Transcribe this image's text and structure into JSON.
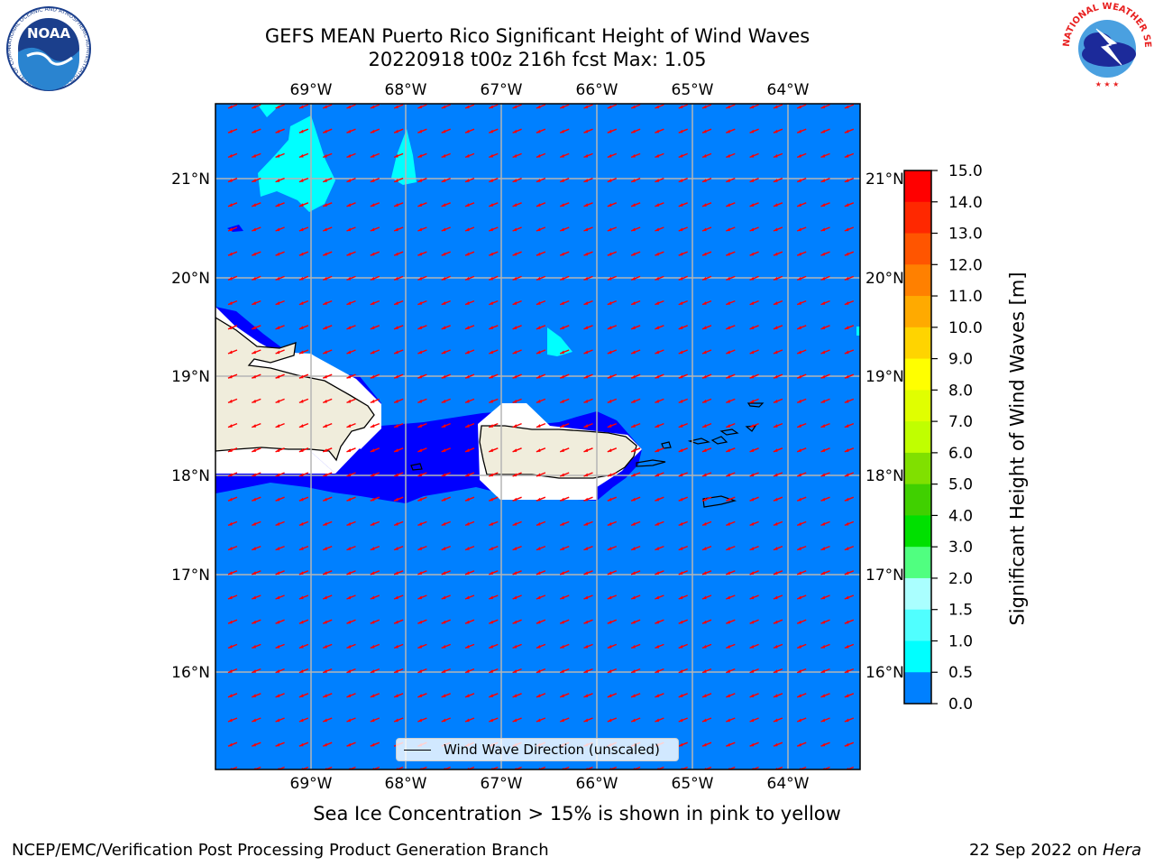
{
  "header": {
    "title_line1": "GEFS MEAN Puerto Rico Significant Height of Wind Waves",
    "title_line2": "20220918 t00z 216h fcst   Max: 1.05"
  },
  "logos": {
    "noaa": {
      "text": "NOAA",
      "ring_text": "NATIONAL OCEANIC AND ATMOSPHERIC ADMINISTRATION · U.S. DEPARTMENT OF COMMERCE"
    },
    "nws": {
      "ring_text": "NATIONAL WEATHER SERVICE"
    }
  },
  "map": {
    "lon_labels": [
      "69°W",
      "68°W",
      "67°W",
      "66°W",
      "65°W",
      "64°W"
    ],
    "lat_labels": [
      "21°N",
      "20°N",
      "19°N",
      "18°N",
      "17°N",
      "16°N"
    ],
    "legend_label": "Wind Wave Direction (unscaled)",
    "colors": {
      "ocean": "#0080ff",
      "shallow": "#0000ff",
      "moderate": "#00ffff",
      "land": "#f0eddc",
      "arrow": "#ff0000"
    }
  },
  "colorbar": {
    "title": "Significant Height of Wind Waves [m]",
    "ticks": [
      "15.0",
      "14.0",
      "13.0",
      "12.0",
      "11.0",
      "10.0",
      "9.0",
      "8.0",
      "7.0",
      "6.0",
      "5.0",
      "4.0",
      "3.0",
      "2.0",
      "1.5",
      "1.0",
      "0.5",
      "0.0"
    ],
    "colors": [
      "#ff0000",
      "#ff2800",
      "#ff5500",
      "#ff8000",
      "#ffaa00",
      "#ffd400",
      "#ffff00",
      "#e0ff00",
      "#c0ff00",
      "#80e000",
      "#40d000",
      "#00e000",
      "#50ff80",
      "#aaffff",
      "#50ffff",
      "#00ffff",
      "#0080ff",
      "#0000ff"
    ]
  },
  "footer": {
    "note": "Sea Ice Concentration > 15% is shown in pink to yellow",
    "credit_left": "NCEP/EMC/Verification Post Processing Product Generation Branch",
    "credit_date": "22 Sep 2022 on ",
    "credit_host": "Hera"
  }
}
